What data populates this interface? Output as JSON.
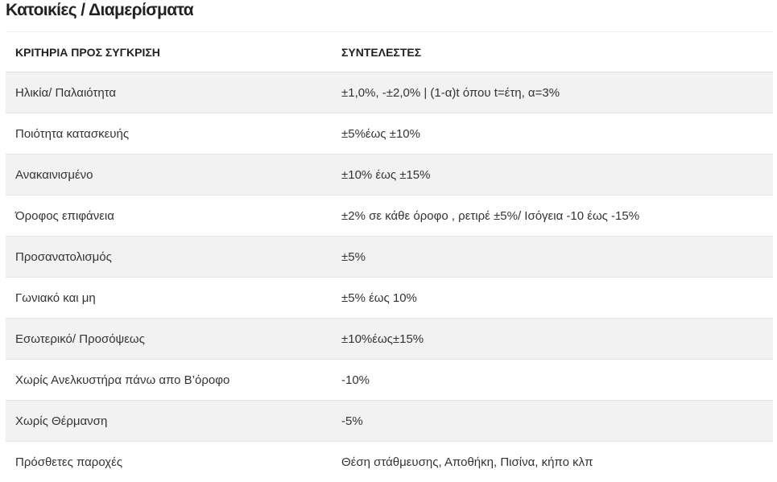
{
  "title": "Κατοικίες / Διαμερίσματα",
  "table": {
    "headers": [
      "ΚΡΙΤΗΡΙΑ ΠΡΟΣ ΣΥΓΚΡΙΣΗ",
      "ΣΥΝΤΕΛΕΣΤΕΣ"
    ],
    "rows": [
      [
        "Ηλικία/ Παλαιότητα",
        "±1,0%, -±2,0% | (1-α)t όπου t=έτη, α=3%"
      ],
      [
        "Ποιότητα κατασκευής",
        "±5%έως ±10%"
      ],
      [
        "Ανακαινισμένο",
        "±10% έως ±15%"
      ],
      [
        "Όροφος επιφάνεια",
        "±2% σε κάθε όροφο , ρετιρέ ±5%/ Ισόγεια -10 έως -15%"
      ],
      [
        "Προσανατολισμός",
        "±5%"
      ],
      [
        "Γωνιακό και μη",
        "±5% έως 10%"
      ],
      [
        "Εσωτερικό/ Προσόψεως",
        "±10%έως±15%"
      ],
      [
        "Χωρίς Ανελκυστήρα πάνω απο Β’όροφο",
        "-10%"
      ],
      [
        "Χωρίς Θέρμανση",
        "-5%"
      ],
      [
        "Πρόσθετες παροχές",
        "Θέση στάθμευσης, Αποθήκη, Πισίνα, κήπο κλπ"
      ]
    ]
  }
}
